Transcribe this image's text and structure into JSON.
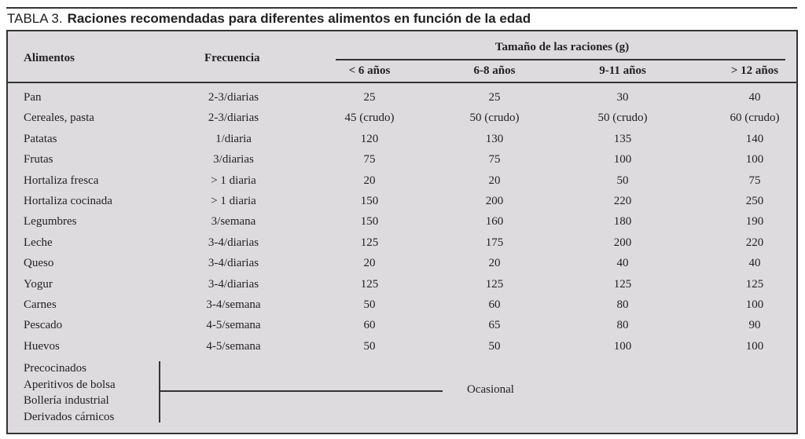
{
  "title": {
    "label": "TABLA 3.",
    "text": "Raciones recomendadas para diferentes alimentos en función de la edad"
  },
  "headers": {
    "alimentos": "Alimentos",
    "frecuencia": "Frecuencia",
    "group": "Tamaño de las raciones (g)",
    "ages": [
      "< 6 años",
      "6-8 años",
      "9-11 años",
      "> 12 años"
    ]
  },
  "rows": [
    [
      "Pan",
      "2-3/diarias",
      "25",
      "25",
      "30",
      "40"
    ],
    [
      "Cereales, pasta",
      "2-3/diarias",
      "45 (crudo)",
      "50 (crudo)",
      "50 (crudo)",
      "60 (crudo)"
    ],
    [
      "Patatas",
      "1/diaria",
      "120",
      "130",
      "135",
      "140"
    ],
    [
      "Frutas",
      "3/diarias",
      "75",
      "75",
      "100",
      "100"
    ],
    [
      "Hortaliza fresca",
      "> 1 diaria",
      "20",
      "20",
      "50",
      "75"
    ],
    [
      "Hortaliza cocinada",
      "> 1 diaria",
      "150",
      "200",
      "220",
      "250"
    ],
    [
      "Legumbres",
      "3/semana",
      "150",
      "160",
      "180",
      "190"
    ],
    [
      "Leche",
      "3-4/diarias",
      "125",
      "175",
      "200",
      "220"
    ],
    [
      "Queso",
      "3-4/diarias",
      "20",
      "20",
      "40",
      "40"
    ],
    [
      "Yogur",
      "3-4/diarias",
      "125",
      "125",
      "125",
      "125"
    ],
    [
      "Carnes",
      "3-4/semana",
      "50",
      "60",
      "80",
      "100"
    ],
    [
      "Pescado",
      "4-5/semana",
      "60",
      "65",
      "80",
      "90"
    ],
    [
      "Huevos",
      "4-5/semana",
      "50",
      "50",
      "100",
      "100"
    ]
  ],
  "occasional": {
    "items": [
      "Precocinados",
      "Aperitivos de bolsa",
      "Bollería industrial",
      "Derivados cárnicos"
    ],
    "label": "Ocasional"
  }
}
